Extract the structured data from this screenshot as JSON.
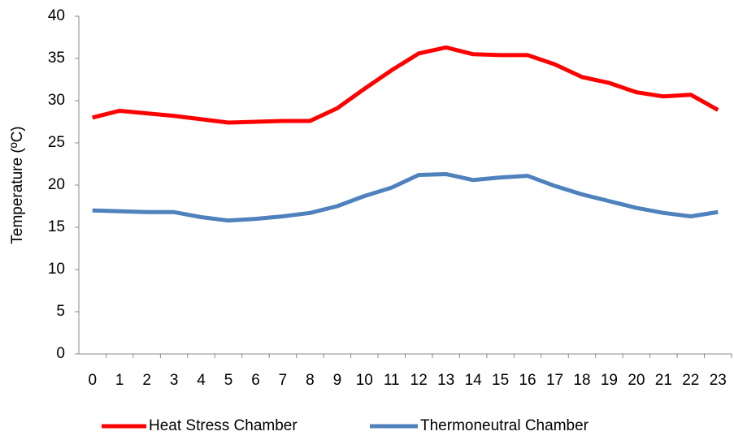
{
  "chart_data": {
    "type": "line",
    "y_label": "Temperature (ºC)",
    "categories": [
      "0",
      "1",
      "2",
      "3",
      "4",
      "5",
      "6",
      "7",
      "8",
      "9",
      "10",
      "11",
      "12",
      "13",
      "14",
      "15",
      "16",
      "17",
      "18",
      "19",
      "20",
      "21",
      "22",
      "23"
    ],
    "series": [
      {
        "name": "Heat Stress Chamber",
        "color": "#ff0000",
        "values": [
          28.0,
          28.8,
          28.5,
          28.2,
          27.8,
          27.4,
          27.5,
          27.6,
          27.6,
          29.1,
          31.4,
          33.6,
          35.6,
          36.3,
          35.5,
          35.4,
          35.4,
          34.3,
          32.8,
          32.1,
          31.0,
          30.5,
          30.7,
          28.9
        ]
      },
      {
        "name": "Thermoneutral Chamber",
        "color": "#4f81bd",
        "values": [
          17.0,
          16.9,
          16.8,
          16.8,
          16.2,
          15.8,
          16.0,
          16.3,
          16.7,
          17.5,
          18.7,
          19.7,
          21.2,
          21.3,
          20.6,
          20.9,
          21.1,
          19.9,
          18.9,
          18.1,
          17.3,
          16.7,
          16.3,
          16.8
        ]
      }
    ],
    "ylim": [
      0,
      40
    ],
    "yticks": [
      0,
      5,
      10,
      15,
      20,
      25,
      30,
      35,
      40
    ],
    "legend": "bottom"
  }
}
